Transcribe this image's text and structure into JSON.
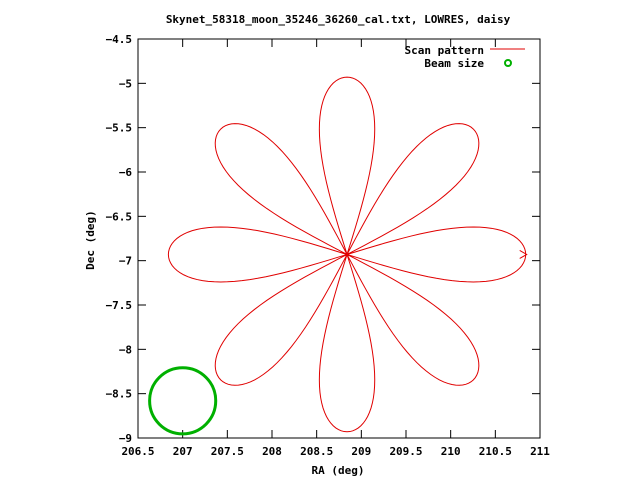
{
  "chart_data": {
    "type": "line",
    "title": "Skynet_58318_moon_35246_36260_cal.txt, LOWRES, daisy",
    "xlabel": "RA (deg)",
    "ylabel": "Dec (deg)",
    "xlim": [
      206.5,
      211
    ],
    "ylim": [
      -9,
      -4.5
    ],
    "x_ticks": [
      206.5,
      207,
      207.5,
      208,
      208.5,
      209,
      209.5,
      210,
      210.5,
      211
    ],
    "x_tick_labels": [
      "206.5",
      "207",
      "207.5",
      "208",
      "208.5",
      "209",
      "209.5",
      "210",
      "210.5",
      "211"
    ],
    "y_ticks": [
      -9,
      -8.5,
      -8,
      -7.5,
      -7,
      -6.5,
      -6,
      -5.5,
      -5,
      -4.5
    ],
    "y_tick_labels": [
      "-9",
      "-8.5",
      "-8",
      "-7.5",
      "-7",
      "-6.5",
      "-6",
      "-5.5",
      "-5",
      "-4.5"
    ],
    "grid": false,
    "legend_position": "top-right",
    "legend": [
      {
        "label": "Scan pattern",
        "color": "#e00000",
        "style": "line"
      },
      {
        "label": "Beam size",
        "color": "#00b000",
        "style": "circle"
      }
    ],
    "series": [
      {
        "name": "Scan pattern",
        "color": "#e00000",
        "pattern": "daisy",
        "center": {
          "ra": 208.84,
          "dec": -6.93
        },
        "petals": 8,
        "petal_tip_distance_deg": 2.0,
        "petal_half_width_deg": 0.31,
        "start_end_direction": "east"
      },
      {
        "name": "Beam size",
        "color": "#00b000",
        "center": {
          "ra": 207.0,
          "dec": -8.58
        },
        "radius_deg": 0.37
      }
    ]
  }
}
